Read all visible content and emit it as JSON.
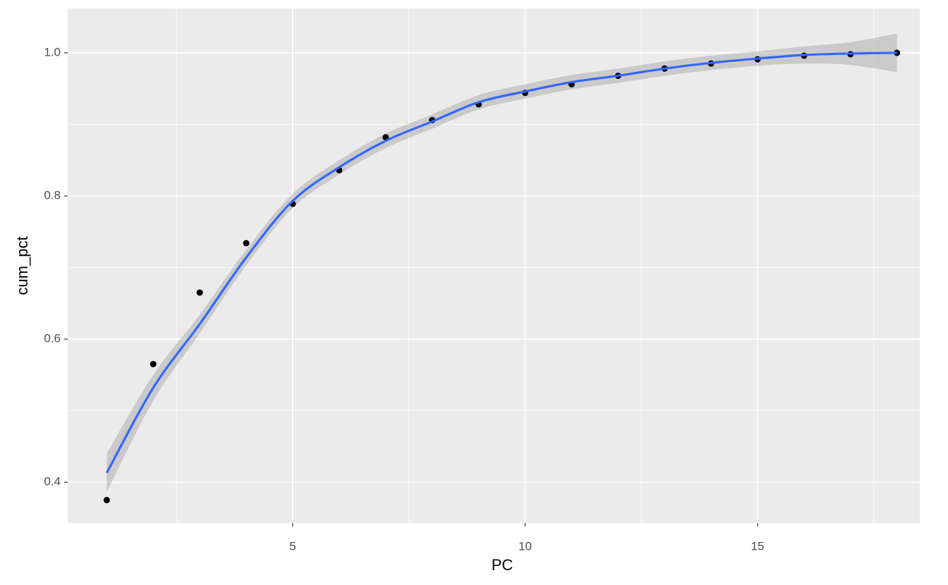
{
  "chart_data": {
    "type": "scatter",
    "x_label": "PC",
    "y_label": "cum_pct",
    "x": [
      1,
      2,
      3,
      4,
      5,
      6,
      7,
      8,
      9,
      10,
      11,
      12,
      13,
      14,
      15,
      16,
      17,
      18
    ],
    "values": [
      0.375,
      0.565,
      0.665,
      0.734,
      0.789,
      0.836,
      0.882,
      0.906,
      0.928,
      0.944,
      0.956,
      0.968,
      0.978,
      0.985,
      0.991,
      0.996,
      0.998,
      1.0
    ],
    "color": "#000000",
    "smooth": {
      "color": "#3366FF",
      "fill": "#999999",
      "values": [
        0.413,
        0.532,
        0.621,
        0.714,
        0.793,
        0.84,
        0.877,
        0.904,
        0.931,
        0.946,
        0.959,
        0.968,
        0.978,
        0.986,
        0.992,
        0.997,
        0.999,
        1.0
      ],
      "lower": [
        0.386,
        0.514,
        0.608,
        0.703,
        0.783,
        0.83,
        0.867,
        0.894,
        0.921,
        0.936,
        0.949,
        0.958,
        0.968,
        0.976,
        0.982,
        0.985,
        0.983,
        0.973
      ],
      "upper": [
        0.44,
        0.55,
        0.634,
        0.725,
        0.803,
        0.85,
        0.887,
        0.914,
        0.941,
        0.956,
        0.969,
        0.978,
        0.988,
        0.996,
        1.002,
        1.009,
        1.015,
        1.027
      ]
    },
    "xlim": [
      0.16,
      18.49
    ],
    "ylim": [
      0.343,
      1.062
    ],
    "xticks": [
      5,
      10,
      15
    ],
    "yticks": [
      {
        "value": 0.4,
        "label": "0.4"
      },
      {
        "value": 0.6,
        "label": "0.6"
      },
      {
        "value": 0.8,
        "label": "0.8"
      },
      {
        "value": 1.0,
        "label": "1.0"
      }
    ],
    "x_minor_grid": [
      2.5,
      7.5,
      12.5,
      17.5
    ],
    "y_minor_grid": [
      0.5,
      0.7,
      0.9
    ],
    "grid": true
  }
}
